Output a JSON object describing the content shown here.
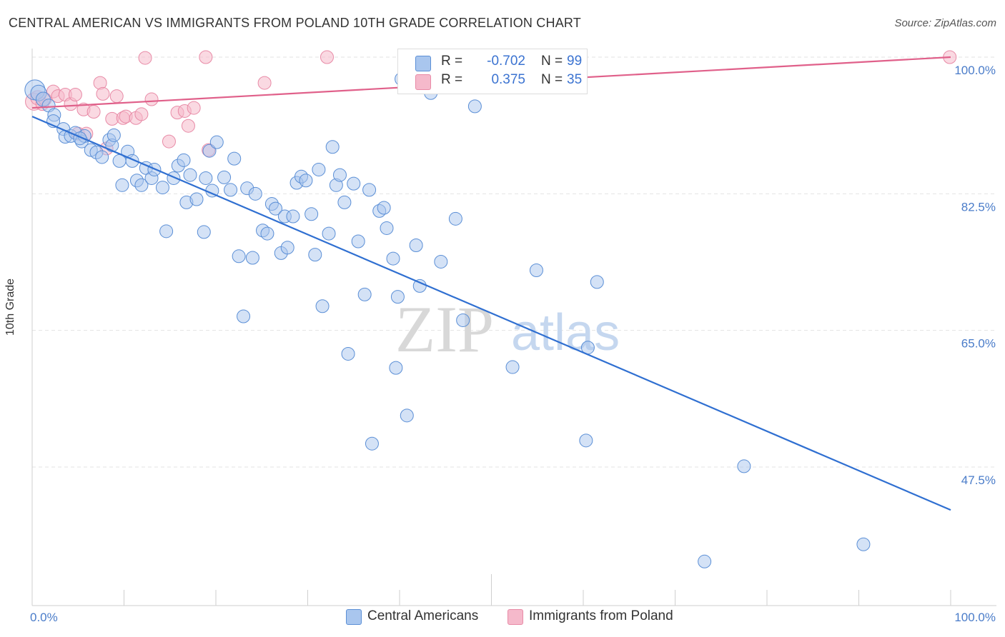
{
  "header": {
    "title": "CENTRAL AMERICAN VS IMMIGRANTS FROM POLAND 10TH GRADE CORRELATION CHART",
    "source": "Source: ZipAtlas.com"
  },
  "legend": {
    "rows": [
      {
        "r_label": "R =",
        "r_value": "-0.702",
        "n_label": "N =",
        "n_value": "99"
      },
      {
        "r_label": "R =",
        "r_value": "0.375",
        "n_label": "N =",
        "n_value": "35"
      }
    ]
  },
  "bottom_legend": [
    "Central Americans",
    "Immigrants from Poland"
  ],
  "watermark": {
    "zip": "ZIP",
    "atlas": "atlas"
  },
  "colors": {
    "blue_fill": "#a9c6ee",
    "blue_stroke": "#5b8fd6",
    "blue_line": "#2f6fd1",
    "pink_fill": "#f5b9cb",
    "pink_stroke": "#e88aa6",
    "pink_line": "#e0608a",
    "tick_label": "#4a7cc9"
  },
  "chart_data": {
    "type": "scatter",
    "title": "CENTRAL AMERICAN VS IMMIGRANTS FROM POLAND 10TH GRADE CORRELATION CHART",
    "xlabel": "",
    "ylabel": "10th Grade",
    "xlim": [
      0,
      100
    ],
    "ylim": [
      32,
      101
    ],
    "x_tick_labels": [
      "0.0%",
      "100.0%"
    ],
    "y_ticks": [
      47.5,
      65.0,
      82.5,
      100.0
    ],
    "y_tick_labels": [
      "47.5%",
      "65.0%",
      "82.5%",
      "100.0%"
    ],
    "grid": true,
    "legend_position": "top-center",
    "series": [
      {
        "name": "Central Americans",
        "color": "#5b8fd6",
        "trend": {
          "x": [
            0,
            100
          ],
          "y": [
            92.4,
            42.0
          ]
        },
        "points": [
          [
            0.3,
            95.8,
            14
          ],
          [
            0.7,
            95.4,
            11
          ],
          [
            1.2,
            94.6,
            10
          ],
          [
            1.8,
            93.8,
            9
          ],
          [
            2.4,
            92.6,
            9
          ],
          [
            2.3,
            91.8,
            9
          ],
          [
            3.4,
            90.8,
            9
          ],
          [
            3.6,
            89.8,
            9
          ],
          [
            4.2,
            89.9,
            9
          ],
          [
            4.7,
            90.3,
            9
          ],
          [
            5.4,
            89.2,
            9
          ],
          [
            5.7,
            89.9,
            9
          ],
          [
            6.4,
            88.1,
            9
          ],
          [
            7.0,
            87.8,
            9
          ],
          [
            7.6,
            87.2,
            9
          ],
          [
            8.4,
            89.4,
            9
          ],
          [
            8.7,
            88.7,
            9
          ],
          [
            8.9,
            90.0,
            9
          ],
          [
            9.5,
            86.7,
            9
          ],
          [
            9.8,
            83.6,
            9
          ],
          [
            10.4,
            87.9,
            9
          ],
          [
            10.9,
            86.7,
            9
          ],
          [
            11.4,
            84.2,
            9
          ],
          [
            11.9,
            83.6,
            9
          ],
          [
            12.4,
            85.8,
            9
          ],
          [
            13.0,
            84.5,
            9
          ],
          [
            13.3,
            85.6,
            9
          ],
          [
            14.2,
            83.3,
            9
          ],
          [
            14.6,
            77.7,
            9
          ],
          [
            15.4,
            84.5,
            9
          ],
          [
            15.9,
            86.1,
            9
          ],
          [
            16.5,
            86.8,
            9
          ],
          [
            16.8,
            81.4,
            9
          ],
          [
            17.2,
            84.9,
            9
          ],
          [
            17.9,
            81.8,
            9
          ],
          [
            18.7,
            77.6,
            9
          ],
          [
            18.9,
            84.5,
            9
          ],
          [
            19.3,
            88.0,
            9
          ],
          [
            19.6,
            82.9,
            9
          ],
          [
            20.1,
            89.1,
            9
          ],
          [
            20.9,
            84.6,
            9
          ],
          [
            21.6,
            83.0,
            9
          ],
          [
            22.0,
            87.0,
            9
          ],
          [
            22.5,
            74.5,
            9
          ],
          [
            23.0,
            66.8,
            9
          ],
          [
            23.4,
            83.2,
            9
          ],
          [
            24.0,
            74.3,
            9
          ],
          [
            24.3,
            82.5,
            9
          ],
          [
            25.1,
            77.8,
            9
          ],
          [
            25.6,
            77.4,
            9
          ],
          [
            26.1,
            81.2,
            9
          ],
          [
            26.5,
            80.6,
            9
          ],
          [
            27.1,
            74.9,
            9
          ],
          [
            27.5,
            79.6,
            9
          ],
          [
            27.8,
            75.6,
            9
          ],
          [
            28.4,
            79.6,
            9
          ],
          [
            28.8,
            83.9,
            9
          ],
          [
            29.3,
            84.7,
            9
          ],
          [
            29.8,
            84.2,
            9
          ],
          [
            30.4,
            79.9,
            9
          ],
          [
            30.8,
            74.7,
            9
          ],
          [
            31.2,
            85.6,
            9
          ],
          [
            31.6,
            68.1,
            9
          ],
          [
            32.3,
            77.4,
            9
          ],
          [
            32.7,
            88.5,
            9
          ],
          [
            33.1,
            83.6,
            9
          ],
          [
            33.5,
            84.9,
            9
          ],
          [
            34.0,
            81.4,
            9
          ],
          [
            34.4,
            62.0,
            9
          ],
          [
            35.0,
            83.8,
            9
          ],
          [
            35.5,
            76.4,
            9
          ],
          [
            36.2,
            69.6,
            9
          ],
          [
            36.7,
            83.0,
            9
          ],
          [
            37.0,
            50.5,
            9
          ],
          [
            37.8,
            80.3,
            9
          ],
          [
            38.3,
            80.7,
            9
          ],
          [
            38.6,
            78.1,
            9
          ],
          [
            39.3,
            74.2,
            9
          ],
          [
            39.6,
            60.2,
            9
          ],
          [
            39.8,
            69.3,
            9
          ],
          [
            40.2,
            97.2,
            9
          ],
          [
            40.8,
            54.1,
            9
          ],
          [
            41.8,
            75.9,
            9
          ],
          [
            42.2,
            70.7,
            9
          ],
          [
            43.4,
            95.4,
            9
          ],
          [
            44.5,
            73.8,
            9
          ],
          [
            46.1,
            79.3,
            9
          ],
          [
            46.9,
            66.3,
            9
          ],
          [
            48.2,
            93.7,
            9
          ],
          [
            48.6,
            99.5,
            9
          ],
          [
            52.3,
            60.3,
            9
          ],
          [
            54.9,
            72.7,
            9
          ],
          [
            60.3,
            50.9,
            9
          ],
          [
            60.5,
            62.8,
            9
          ],
          [
            61.5,
            71.2,
            9
          ],
          [
            77.5,
            47.6,
            9
          ],
          [
            90.5,
            37.6,
            9
          ],
          [
            73.2,
            35.4,
            9
          ],
          [
            5.2,
            89.6,
            9
          ]
        ]
      },
      {
        "name": "Immigrants from Poland",
        "color": "#e88aa6",
        "trend": {
          "x": [
            0,
            100
          ],
          "y": [
            93.5,
            100.0
          ]
        },
        "points": [
          [
            0.2,
            94.3,
            12
          ],
          [
            0.6,
            94.8,
            10
          ],
          [
            1.1,
            94.0,
            9
          ],
          [
            1.4,
            94.6,
            9
          ],
          [
            2.3,
            95.6,
            9
          ],
          [
            2.8,
            95.0,
            9
          ],
          [
            3.6,
            95.2,
            9
          ],
          [
            4.2,
            94.0,
            9
          ],
          [
            4.7,
            95.2,
            9
          ],
          [
            5.0,
            90.2,
            9
          ],
          [
            5.6,
            93.3,
            9
          ],
          [
            5.9,
            90.2,
            9
          ],
          [
            6.7,
            93.0,
            9
          ],
          [
            7.4,
            96.7,
            9
          ],
          [
            7.7,
            95.3,
            9
          ],
          [
            8.1,
            88.3,
            9
          ],
          [
            8.7,
            92.1,
            9
          ],
          [
            9.2,
            95.0,
            9
          ],
          [
            9.9,
            92.2,
            9
          ],
          [
            10.2,
            92.4,
            9
          ],
          [
            11.3,
            92.2,
            9
          ],
          [
            11.9,
            92.7,
            9
          ],
          [
            12.3,
            99.9,
            9
          ],
          [
            13.0,
            94.6,
            9
          ],
          [
            14.9,
            89.2,
            9
          ],
          [
            15.8,
            92.9,
            9
          ],
          [
            16.6,
            93.1,
            9
          ],
          [
            17.0,
            91.2,
            9
          ],
          [
            17.6,
            93.5,
            9
          ],
          [
            18.9,
            100.0,
            9
          ],
          [
            19.2,
            88.1,
            9
          ],
          [
            25.3,
            96.7,
            9
          ],
          [
            32.1,
            100.0,
            9
          ],
          [
            42.5,
            96.7,
            9
          ],
          [
            99.9,
            100.0,
            9
          ]
        ]
      }
    ]
  }
}
